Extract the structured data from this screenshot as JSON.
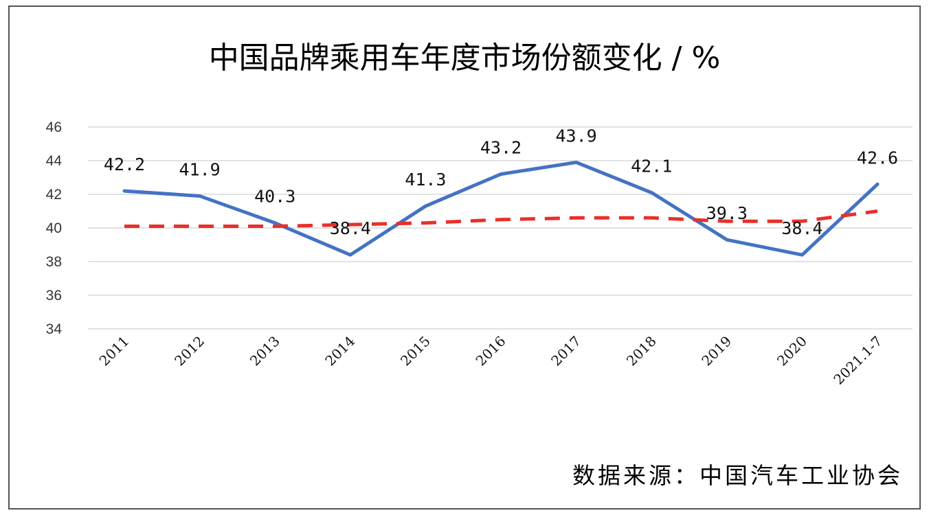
{
  "title": "中国品牌乘用车年度市场份额变化 / %",
  "source": "数据来源：中国汽车工业协会",
  "chart_data": {
    "type": "line",
    "title": "中国品牌乘用车年度市场份额变化 / %",
    "categories": [
      "2011",
      "2012",
      "2013",
      "2014",
      "2015",
      "2016",
      "2017",
      "2018",
      "2019",
      "2020",
      "2021.1-7"
    ],
    "series": [
      {
        "values": [
          42.2,
          41.9,
          40.3,
          38.4,
          41.3,
          43.2,
          43.9,
          42.1,
          39.3,
          38.4,
          42.6
        ],
        "color": "#4472C4",
        "style": "solid",
        "data_labels": true
      },
      {
        "values": [
          40.1,
          40.1,
          40.1,
          40.2,
          40.3,
          40.5,
          40.6,
          40.6,
          40.4,
          40.4,
          41.0
        ],
        "color": "#E8302A",
        "style": "dashed",
        "data_labels": false
      }
    ],
    "ylim": [
      34,
      46
    ],
    "yticks": [
      34,
      36,
      38,
      40,
      42,
      44,
      46
    ],
    "grid": true,
    "legend": "none",
    "xlabel": "",
    "ylabel": ""
  }
}
